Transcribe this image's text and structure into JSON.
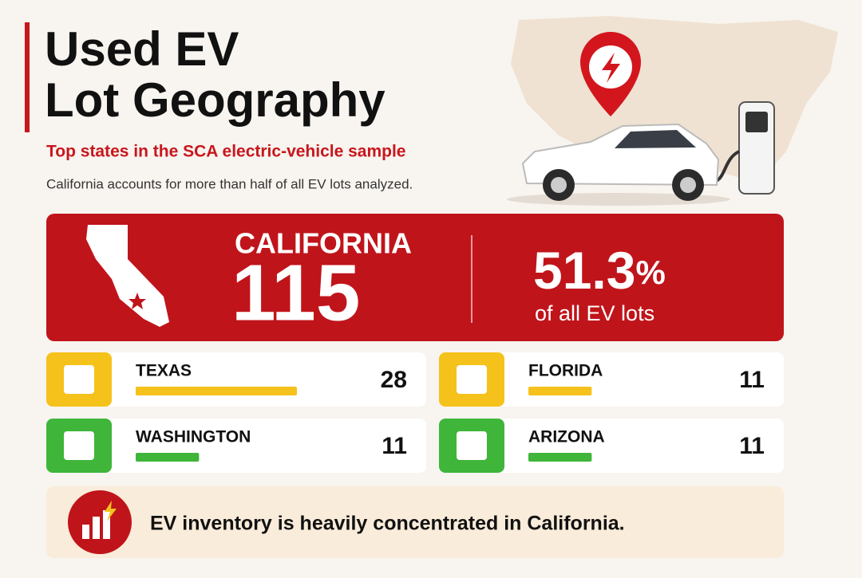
{
  "header": {
    "title_lines": [
      "Used EV",
      "Lot Geography"
    ],
    "subtitle": "Top states in the SCA electric-vehicle sample",
    "note": "California accounts for more than half of all EV lots analyzed."
  },
  "highlight": {
    "state": "CALIFORNIA",
    "count": 115,
    "share": "51.3",
    "share_unit": "%",
    "caption": "of all EV lots"
  },
  "states": [
    {
      "name": "TEXAS",
      "count": 28,
      "color": "#f5c21b"
    },
    {
      "name": "FLORIDA",
      "count": 11,
      "color": "#f5c21b"
    },
    {
      "name": "WASHINGTON",
      "count": 11,
      "color": "#3fb53a"
    },
    {
      "name": "ARIZONA",
      "count": 11,
      "color": "#3fb53a"
    }
  ],
  "footer": {
    "text": "EV inventory is heavily concentrated in California."
  }
}
